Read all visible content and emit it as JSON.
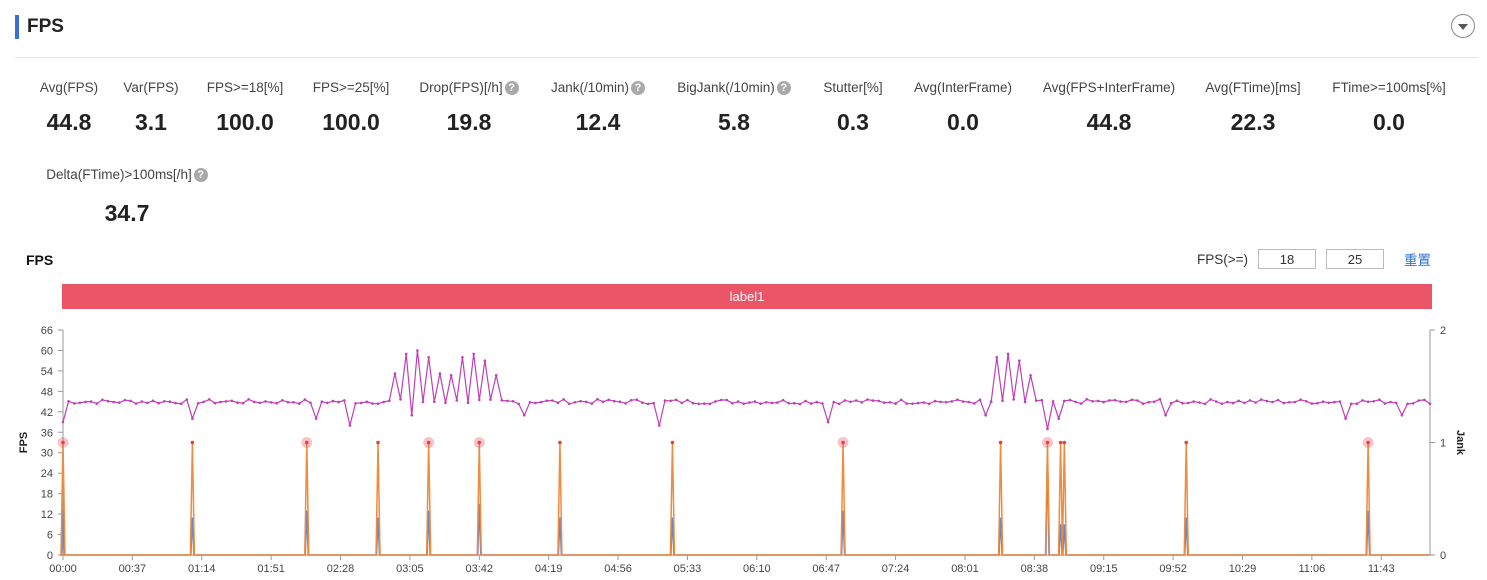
{
  "header": {
    "title": "FPS"
  },
  "metrics": [
    {
      "label": "Avg(FPS)",
      "value": "44.8",
      "help": false
    },
    {
      "label": "Var(FPS)",
      "value": "3.1",
      "help": false
    },
    {
      "label": "FPS>=18[%]",
      "value": "100.0",
      "help": false
    },
    {
      "label": "FPS>=25[%]",
      "value": "100.0",
      "help": false
    },
    {
      "label": "Drop(FPS)[/h]",
      "value": "19.8",
      "help": true
    },
    {
      "label": "Jank(/10min)",
      "value": "12.4",
      "help": true
    },
    {
      "label": "BigJank(/10min)",
      "value": "5.8",
      "help": true
    },
    {
      "label": "Stutter[%]",
      "value": "0.3",
      "help": false
    },
    {
      "label": "Avg(InterFrame)",
      "value": "0.0",
      "help": false
    },
    {
      "label": "Avg(FPS+InterFrame)",
      "value": "44.8",
      "help": false
    },
    {
      "label": "Avg(FTime)[ms]",
      "value": "22.3",
      "help": false
    },
    {
      "label": "FTime>=100ms[%]",
      "value": "0.0",
      "help": false
    },
    {
      "label": "Delta(FTime)>100ms[/h]",
      "value": "34.7",
      "help": true
    }
  ],
  "help_glyph": "?",
  "chart_panel": {
    "title": "FPS",
    "threshold_label": "FPS(>=)",
    "threshold_low": "18",
    "threshold_high": "25",
    "reset_label": "重置",
    "band_label": "label1"
  },
  "chart_data": {
    "type": "line",
    "xlabel": "",
    "ylabel": "FPS",
    "y2label": "Jank",
    "ylim": [
      0,
      66
    ],
    "y2lim": [
      0,
      2
    ],
    "yticks": [
      0,
      6,
      12,
      18,
      24,
      30,
      36,
      42,
      48,
      54,
      60,
      66
    ],
    "y2ticks": [
      0,
      1,
      2
    ],
    "xlim": [
      "00:00",
      "12:09"
    ],
    "xticks": [
      "00:00",
      "00:37",
      "01:14",
      "01:51",
      "02:28",
      "03:05",
      "03:42",
      "04:19",
      "04:56",
      "05:33",
      "06:10",
      "06:47",
      "07:24",
      "08:01",
      "08:38",
      "09:15",
      "09:52",
      "10:29",
      "11:06",
      "11:43"
    ],
    "fps_series": {
      "name": "FPS",
      "color": "#bf3fb6",
      "baseline": 45,
      "spikes": [
        {
          "t": "03:10",
          "value": 60
        },
        {
          "t": "03:38",
          "value": 59
        },
        {
          "t": "08:24",
          "value": 59
        }
      ],
      "dips": [
        {
          "t": "00:00",
          "value": 39
        },
        {
          "t": "01:09",
          "value": 40
        },
        {
          "t": "02:14",
          "value": 40
        },
        {
          "t": "02:33",
          "value": 38
        },
        {
          "t": "03:07",
          "value": 41
        },
        {
          "t": "04:05",
          "value": 41
        },
        {
          "t": "05:17",
          "value": 38
        },
        {
          "t": "06:48",
          "value": 39
        },
        {
          "t": "08:13",
          "value": 41
        },
        {
          "t": "08:45",
          "value": 37
        },
        {
          "t": "08:50",
          "value": 40
        },
        {
          "t": "09:47",
          "value": 41
        },
        {
          "t": "11:23",
          "value": 40
        },
        {
          "t": "11:55",
          "value": 41
        }
      ]
    },
    "jank_series": {
      "name": "Jank",
      "color": "#f08a3c",
      "events": [
        "00:00",
        "01:09",
        "02:10",
        "02:48",
        "03:15",
        "03:42",
        "04:25",
        "05:25",
        "06:56",
        "08:20",
        "08:45",
        "08:52",
        "08:54",
        "09:59",
        "11:36"
      ]
    },
    "bigjank_markers": {
      "color": "#ea5567",
      "events": [
        "00:00",
        "02:10",
        "03:15",
        "03:42",
        "06:56",
        "08:45",
        "11:36"
      ]
    },
    "stutter_series": {
      "name": "Stutter",
      "color": "#6b86c6",
      "events": [
        {
          "t": "00:00",
          "value": 13
        },
        {
          "t": "01:09",
          "value": 11
        },
        {
          "t": "02:10",
          "value": 13
        },
        {
          "t": "02:48",
          "value": 11
        },
        {
          "t": "03:15",
          "value": 13
        },
        {
          "t": "03:42",
          "value": 15
        },
        {
          "t": "04:25",
          "value": 11
        },
        {
          "t": "05:25",
          "value": 11
        },
        {
          "t": "06:56",
          "value": 13
        },
        {
          "t": "08:20",
          "value": 11
        },
        {
          "t": "08:45",
          "value": 31
        },
        {
          "t": "08:52",
          "value": 9
        },
        {
          "t": "08:54",
          "value": 9
        },
        {
          "t": "09:59",
          "value": 11
        },
        {
          "t": "11:36",
          "value": 13
        }
      ]
    }
  }
}
